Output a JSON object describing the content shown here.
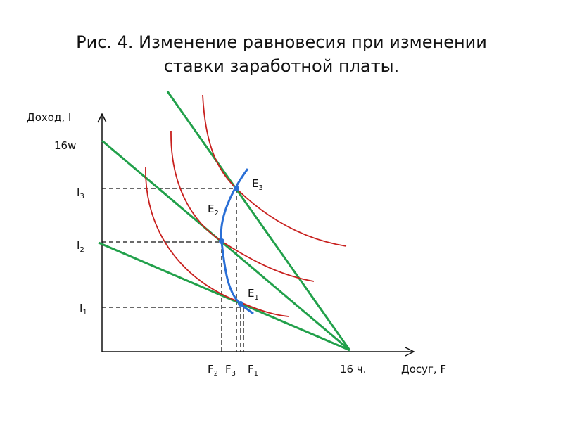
{
  "title": {
    "line1": "Рис. 4. Изменение равновесия при изменении",
    "line2": "ставки заработной платы."
  },
  "axes": {
    "y_label": "Доход, I",
    "x_label": "Досуг, F",
    "y_max_label": "16w",
    "x_max_label": "16 ч."
  },
  "income_levels": [
    {
      "base": "I",
      "sub": "1"
    },
    {
      "base": "I",
      "sub": "2"
    },
    {
      "base": "I",
      "sub": "3"
    }
  ],
  "equilibria": [
    {
      "base": "E",
      "sub": "1"
    },
    {
      "base": "E",
      "sub": "2"
    },
    {
      "base": "E",
      "sub": "3"
    }
  ],
  "leisure_levels": [
    {
      "base": "F",
      "sub": "2"
    },
    {
      "base": "F",
      "sub": "3"
    },
    {
      "base": "F",
      "sub": "1"
    }
  ]
}
